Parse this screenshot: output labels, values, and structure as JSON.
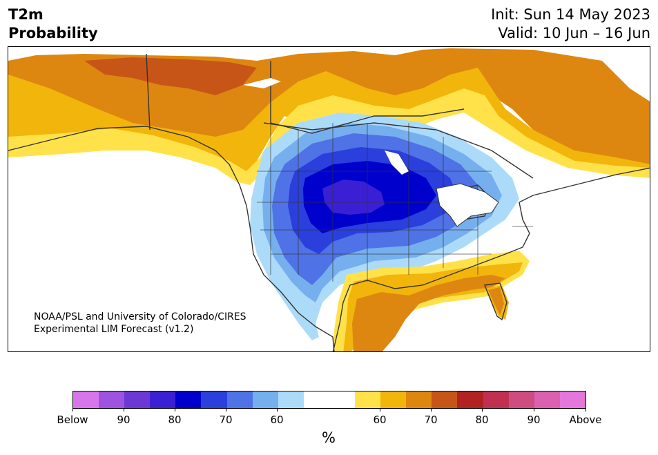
{
  "header": {
    "title_line1": "T2m",
    "title_line2": "Probability",
    "init": "Init: Sun 14 May 2023",
    "valid": "Valid: 10 Jun – 16 Jun"
  },
  "map": {
    "credit_line1": "NOAA/PSL and University of Colorado/CIRES",
    "credit_line2": "Experimental LIM Forecast (v1.2)"
  },
  "colorbar": {
    "unit": "%",
    "colors": [
      "#d676ea",
      "#9e52e0",
      "#6b38d6",
      "#3a1fd4",
      "#0000cc",
      "#2a3fdc",
      "#4f72e6",
      "#76afee",
      "#acdbfa",
      "#ffffff",
      "#ffffff",
      "#ffe24a",
      "#f2b50c",
      "#dd8710",
      "#c75518",
      "#b22222",
      "#c03050",
      "#cf4c80",
      "#da60b0",
      "#e577dc"
    ],
    "tick_labels": [
      "Below",
      "90",
      "80",
      "70",
      "60",
      "60",
      "70",
      "80",
      "90",
      "Above"
    ]
  },
  "legend_colors": {
    "white": "#ffffff",
    "light_blue": "#acdbfa",
    "blue": "#4f72e6",
    "dark_blue": "#0000cc",
    "purple": "#3a1fd4",
    "yellow": "#ffe24a",
    "gold": "#f2b50c",
    "orange": "#dd8710",
    "dark_orange": "#c75518"
  }
}
